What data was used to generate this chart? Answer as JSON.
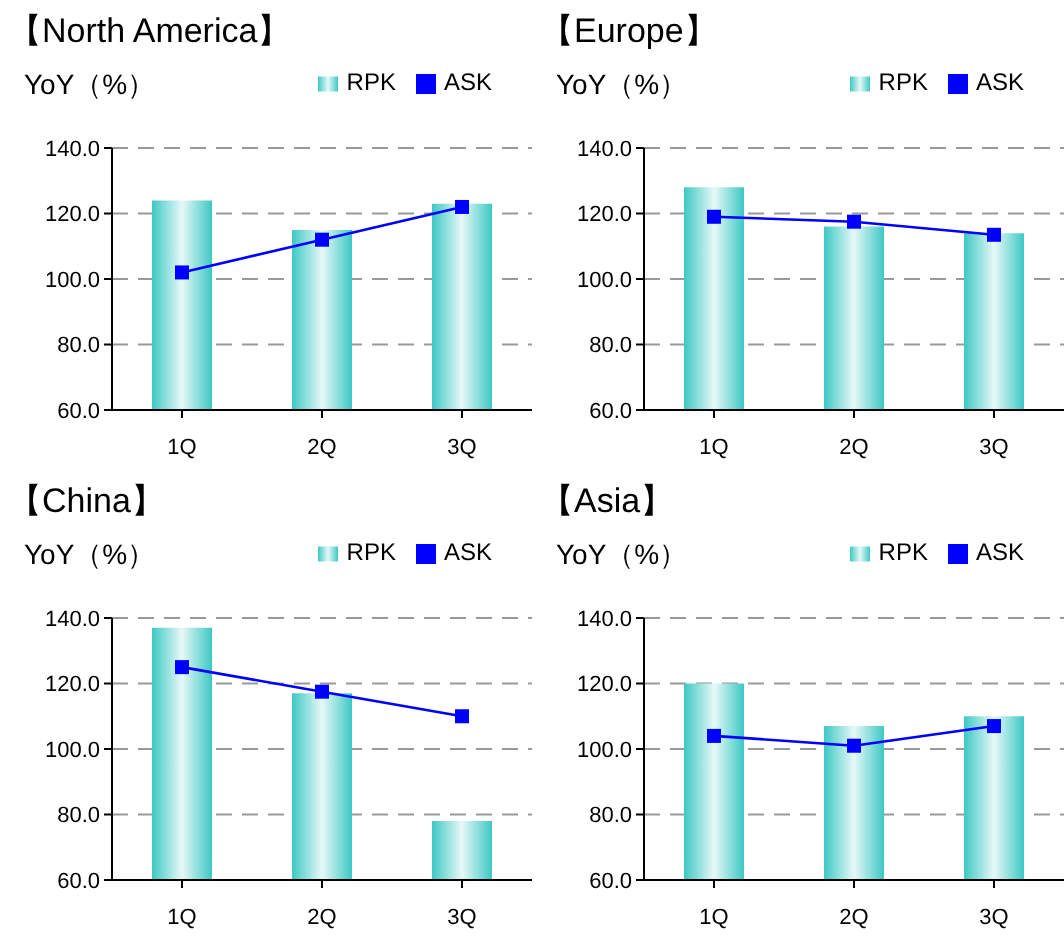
{
  "chart_data": [
    {
      "type": "bar",
      "title": "【North America】",
      "ylabel": "YoY（%）",
      "categories": [
        "1Q",
        "2Q",
        "3Q"
      ],
      "series": [
        {
          "name": "RPK",
          "color": "#3ec8c4",
          "values": [
            124,
            115,
            123
          ]
        },
        {
          "name": "ASK",
          "type": "line",
          "color": "#0000ff",
          "values": [
            102,
            112,
            122
          ]
        }
      ],
      "ylim": [
        60,
        140
      ],
      "yticks": [
        {
          "value": 60,
          "label": "60.0"
        },
        {
          "value": 80,
          "label": "80.0"
        },
        {
          "value": 100,
          "label": "100.0"
        },
        {
          "value": 120,
          "label": "120.0"
        },
        {
          "value": 140,
          "label": "140.0"
        }
      ],
      "grid": "y",
      "legend": "top right",
      "marker": "square",
      "line_style": "solid"
    },
    {
      "type": "bar",
      "title": "【Europe】",
      "ylabel": "YoY（%）",
      "categories": [
        "1Q",
        "2Q",
        "3Q"
      ],
      "series": [
        {
          "name": "RPK",
          "color": "#3ec8c4",
          "values": [
            128,
            116,
            114
          ]
        },
        {
          "name": "ASK",
          "type": "line",
          "color": "#0000ff",
          "values": [
            119,
            117.5,
            113.5
          ]
        }
      ],
      "ylim": [
        60,
        140
      ],
      "yticks": [
        {
          "value": 60,
          "label": "60.0"
        },
        {
          "value": 80,
          "label": "80.0"
        },
        {
          "value": 100,
          "label": "100.0"
        },
        {
          "value": 120,
          "label": "120.0"
        },
        {
          "value": 140,
          "label": "140.0"
        }
      ],
      "grid": "y",
      "legend": "top right",
      "marker": "square",
      "line_style": "solid"
    },
    {
      "type": "bar",
      "title": "【China】",
      "ylabel": "YoY（%）",
      "categories": [
        "1Q",
        "2Q",
        "3Q"
      ],
      "series": [
        {
          "name": "RPK",
          "color": "#3ec8c4",
          "values": [
            137,
            117,
            78
          ]
        },
        {
          "name": "ASK",
          "type": "line",
          "color": "#0000ff",
          "values": [
            125,
            117.5,
            110
          ]
        }
      ],
      "ylim": [
        60,
        140
      ],
      "yticks": [
        {
          "value": 60,
          "label": "60.0"
        },
        {
          "value": 80,
          "label": "80.0"
        },
        {
          "value": 100,
          "label": "100.0"
        },
        {
          "value": 120,
          "label": "120.0"
        },
        {
          "value": 140,
          "label": "140.0"
        }
      ],
      "grid": "y",
      "legend": "top right",
      "marker": "square",
      "line_style": "solid"
    },
    {
      "type": "bar",
      "title": "【Asia】",
      "ylabel": "YoY（%）",
      "categories": [
        "1Q",
        "2Q",
        "3Q"
      ],
      "series": [
        {
          "name": "RPK",
          "color": "#3ec8c4",
          "values": [
            120,
            107,
            110
          ]
        },
        {
          "name": "ASK",
          "type": "line",
          "color": "#0000ff",
          "values": [
            104,
            101,
            107
          ]
        }
      ],
      "ylim": [
        60,
        140
      ],
      "yticks": [
        {
          "value": 60,
          "label": "60.0"
        },
        {
          "value": 80,
          "label": "80.0"
        },
        {
          "value": 100,
          "label": "100.0"
        },
        {
          "value": 120,
          "label": "120.0"
        },
        {
          "value": 140,
          "label": "140.0"
        }
      ],
      "grid": "y",
      "legend": "top right",
      "marker": "square",
      "line_style": "solid"
    }
  ]
}
